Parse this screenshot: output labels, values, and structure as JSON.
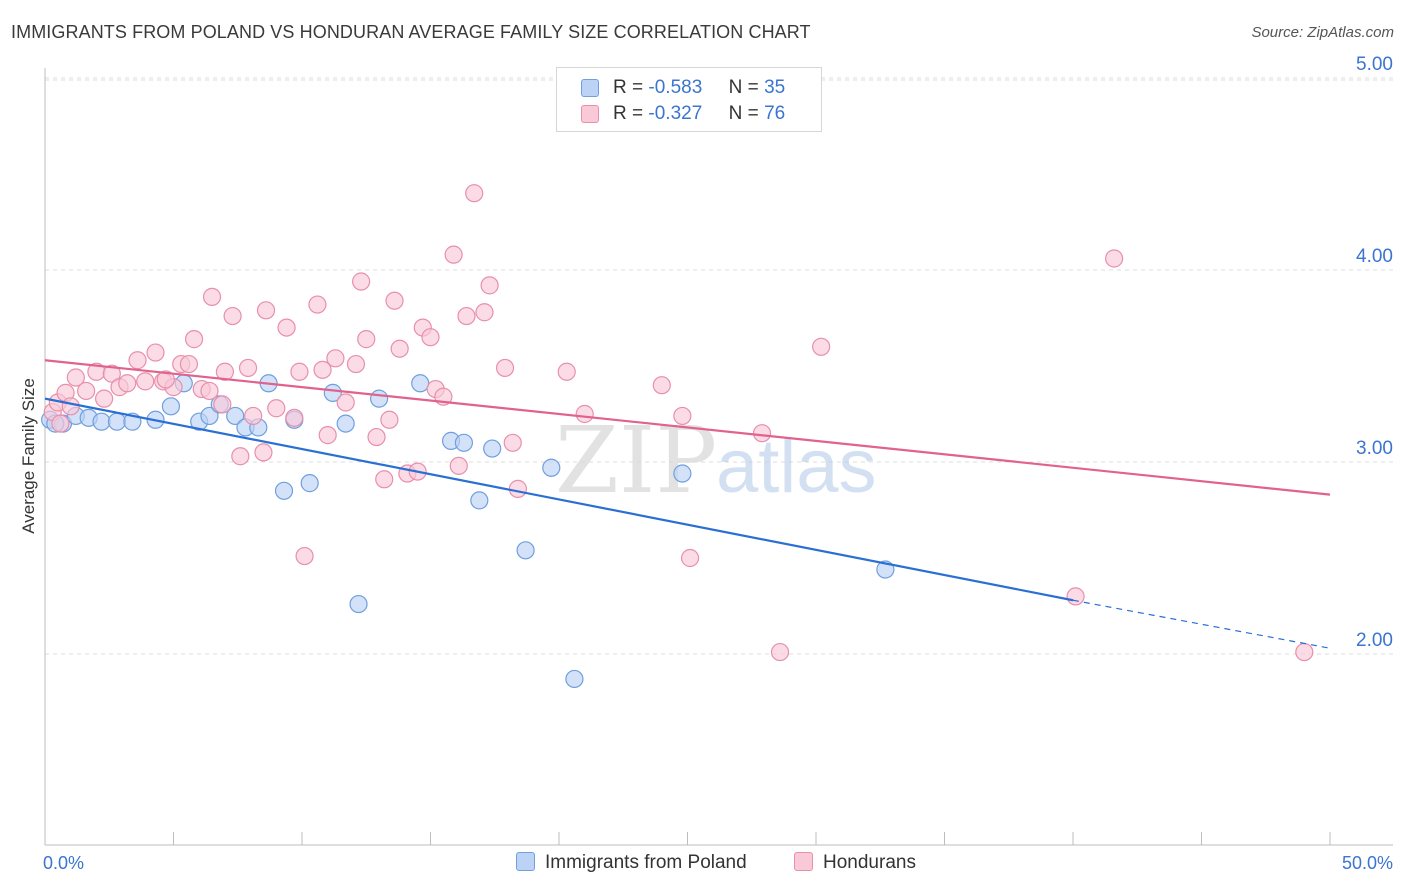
{
  "title": "IMMIGRANTS FROM POLAND VS HONDURAN AVERAGE FAMILY SIZE CORRELATION CHART",
  "source": "Source: ZipAtlas.com",
  "watermark": {
    "zip": "ZIP",
    "atlas": "atlas"
  },
  "legend": {
    "r_label": "R =",
    "n_label": "N =",
    "poland": {
      "r": "-0.583",
      "n": "35"
    },
    "hondurans": {
      "r": "-0.327",
      "n": "76"
    }
  },
  "colors": {
    "poland_fill": "#bcd3f5",
    "poland_stroke": "#6f9fe0",
    "poland_line": "#2a6fd2",
    "hondurans_fill": "#f9c9d8",
    "hondurans_stroke": "#e88fab",
    "hondurans_line": "#e0628d",
    "tick_label": "#3b74d1"
  },
  "chart_data": {
    "type": "scatter",
    "title": "IMMIGRANTS FROM POLAND VS HONDURAN AVERAGE FAMILY SIZE CORRELATION CHART",
    "xlabel": "",
    "ylabel": "Average Family Size",
    "xlim": [
      0,
      50
    ],
    "ylim": [
      1.0,
      5.15
    ],
    "x_tick_labels": {
      "left": "0.0%",
      "right": "50.0%"
    },
    "y_ticks": [
      2.0,
      3.0,
      4.0,
      5.0
    ],
    "y_tick_labels": [
      "2.00",
      "3.00",
      "4.00",
      "5.00"
    ],
    "series": [
      {
        "name": "Immigrants from Poland",
        "points": [
          [
            0.2,
            3.22
          ],
          [
            0.7,
            3.2
          ],
          [
            1.2,
            3.24
          ],
          [
            1.7,
            3.23
          ],
          [
            2.2,
            3.21
          ],
          [
            2.8,
            3.21
          ],
          [
            3.4,
            3.21
          ],
          [
            4.3,
            3.22
          ],
          [
            4.9,
            3.29
          ],
          [
            5.4,
            3.41
          ],
          [
            6.0,
            3.21
          ],
          [
            6.4,
            3.24
          ],
          [
            6.8,
            3.3
          ],
          [
            7.4,
            3.24
          ],
          [
            7.8,
            3.18
          ],
          [
            8.3,
            3.18
          ],
          [
            8.7,
            3.41
          ],
          [
            9.3,
            2.85
          ],
          [
            9.7,
            3.22
          ],
          [
            10.3,
            2.89
          ],
          [
            11.2,
            3.36
          ],
          [
            11.7,
            3.2
          ],
          [
            12.2,
            2.26
          ],
          [
            13.0,
            3.33
          ],
          [
            14.6,
            3.41
          ],
          [
            15.8,
            3.11
          ],
          [
            16.3,
            3.1
          ],
          [
            16.9,
            2.8
          ],
          [
            17.4,
            3.07
          ],
          [
            18.7,
            2.54
          ],
          [
            19.7,
            2.97
          ],
          [
            20.6,
            1.87
          ],
          [
            24.8,
            2.94
          ],
          [
            32.7,
            2.44
          ],
          [
            0.4,
            3.2
          ]
        ]
      },
      {
        "name": "Hondurans",
        "points": [
          [
            0.3,
            3.26
          ],
          [
            0.5,
            3.31
          ],
          [
            0.8,
            3.36
          ],
          [
            1.2,
            3.44
          ],
          [
            1.6,
            3.37
          ],
          [
            2.0,
            3.47
          ],
          [
            2.3,
            3.33
          ],
          [
            2.6,
            3.46
          ],
          [
            2.9,
            3.39
          ],
          [
            3.2,
            3.41
          ],
          [
            3.6,
            3.53
          ],
          [
            3.9,
            3.42
          ],
          [
            4.3,
            3.57
          ],
          [
            4.6,
            3.42
          ],
          [
            5.0,
            3.39
          ],
          [
            5.3,
            3.51
          ],
          [
            5.6,
            3.51
          ],
          [
            5.8,
            3.64
          ],
          [
            6.1,
            3.38
          ],
          [
            6.4,
            3.37
          ],
          [
            6.5,
            3.86
          ],
          [
            7.0,
            3.47
          ],
          [
            7.3,
            3.76
          ],
          [
            7.6,
            3.03
          ],
          [
            7.9,
            3.49
          ],
          [
            8.1,
            3.24
          ],
          [
            8.5,
            3.05
          ],
          [
            8.6,
            3.79
          ],
          [
            9.0,
            3.28
          ],
          [
            9.4,
            3.7
          ],
          [
            9.7,
            3.23
          ],
          [
            9.9,
            3.47
          ],
          [
            10.1,
            2.51
          ],
          [
            10.6,
            3.82
          ],
          [
            11.0,
            3.14
          ],
          [
            11.3,
            3.54
          ],
          [
            11.7,
            3.31
          ],
          [
            12.1,
            3.51
          ],
          [
            12.3,
            3.94
          ],
          [
            12.5,
            3.64
          ],
          [
            12.9,
            3.13
          ],
          [
            13.2,
            2.91
          ],
          [
            13.6,
            3.84
          ],
          [
            13.8,
            3.59
          ],
          [
            14.1,
            2.94
          ],
          [
            14.5,
            2.95
          ],
          [
            14.7,
            3.7
          ],
          [
            15.0,
            3.65
          ],
          [
            15.2,
            3.38
          ],
          [
            15.9,
            4.08
          ],
          [
            16.1,
            2.98
          ],
          [
            16.4,
            3.76
          ],
          [
            16.7,
            4.4
          ],
          [
            17.1,
            3.78
          ],
          [
            17.3,
            3.92
          ],
          [
            17.9,
            3.49
          ],
          [
            18.2,
            3.1
          ],
          [
            18.4,
            2.86
          ],
          [
            20.3,
            3.47
          ],
          [
            21.0,
            3.25
          ],
          [
            24.0,
            3.4
          ],
          [
            24.8,
            3.24
          ],
          [
            25.1,
            2.5
          ],
          [
            27.9,
            3.15
          ],
          [
            28.6,
            2.01
          ],
          [
            30.2,
            3.6
          ],
          [
            40.1,
            2.3
          ],
          [
            41.6,
            4.06
          ],
          [
            49.0,
            2.01
          ],
          [
            0.6,
            3.2
          ],
          [
            1.0,
            3.29
          ],
          [
            4.7,
            3.43
          ],
          [
            6.9,
            3.3
          ],
          [
            10.8,
            3.48
          ],
          [
            13.4,
            3.22
          ],
          [
            15.5,
            3.34
          ]
        ]
      }
    ],
    "trend_lines": [
      {
        "name": "Immigrants from Poland",
        "x": [
          0,
          40
        ],
        "y": [
          3.33,
          2.28
        ],
        "dashed_extension": {
          "x": [
            40,
            50
          ],
          "y": [
            2.28,
            2.03
          ]
        }
      },
      {
        "name": "Hondurans",
        "x": [
          0,
          50
        ],
        "y": [
          3.53,
          2.83
        ]
      }
    ]
  }
}
